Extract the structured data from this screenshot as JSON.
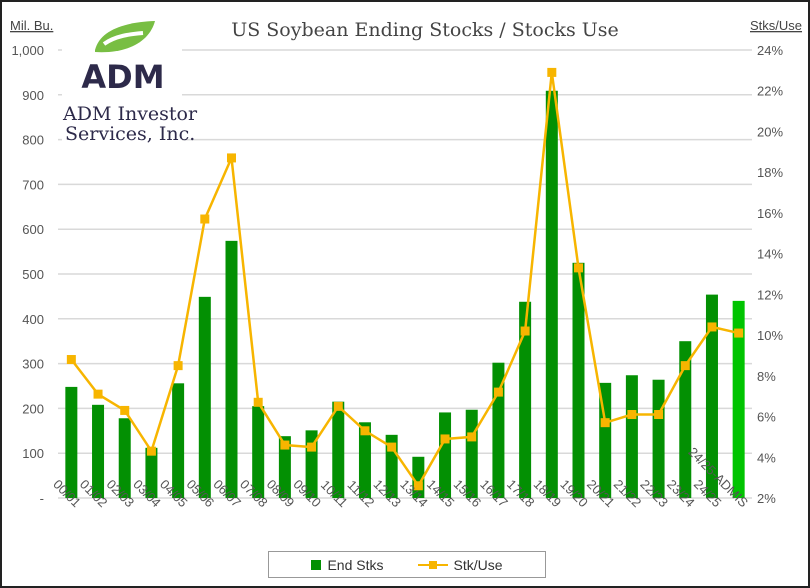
{
  "logo": {
    "brand": "ADM",
    "line1": "ADM Investor",
    "line2": "Services, Inc."
  },
  "colors": {
    "bar": "#039003",
    "bar_highlight": "#00c400",
    "line": "#f7b500",
    "grid": "#d9d9d9",
    "logo_green": "#78be43",
    "logo_navy": "#2d2a4a"
  },
  "chart_data": {
    "type": "bar+line",
    "title": "US Soybean Ending Stocks / Stocks Use",
    "ylabel_left": "Mil. Bu.",
    "ylabel_right": "Stks/Use",
    "ylim_left": [
      0,
      1000
    ],
    "ylim_right": [
      2,
      24
    ],
    "left_ticks": [
      "-",
      "100",
      "200",
      "300",
      "400",
      "500",
      "600",
      "700",
      "800",
      "900",
      "1,000"
    ],
    "right_ticks": [
      "2%",
      "4%",
      "6%",
      "8%",
      "10%",
      "12%",
      "14%",
      "16%",
      "18%",
      "20%",
      "22%",
      "24%"
    ],
    "grid": true,
    "legend_position": "bottom",
    "categories": [
      "00/01",
      "01/02",
      "02/03",
      "03/04",
      "04/05",
      "05/06",
      "06/07",
      "07/08",
      "08/09",
      "09/10",
      "10/11",
      "11/12",
      "12/13",
      "13/14",
      "14/15",
      "15/16",
      "16/17",
      "17/18",
      "18/19",
      "19/20",
      "20/21",
      "21/22",
      "22/23",
      "23/24",
      "24/25",
      "24/25-ADMIS"
    ],
    "series": [
      {
        "name": "End Stks",
        "type": "bar",
        "axis": "left",
        "values": [
          248,
          208,
          178,
          112,
          256,
          449,
          574,
          205,
          138,
          151,
          215,
          169,
          141,
          92,
          191,
          197,
          302,
          438,
          909,
          525,
          257,
          274,
          264,
          350,
          454,
          440
        ]
      },
      {
        "name": "Stk/Use",
        "type": "line",
        "axis": "right",
        "unit": "%",
        "values": [
          8.8,
          7.1,
          6.3,
          4.3,
          8.5,
          15.7,
          18.7,
          6.7,
          4.6,
          4.5,
          6.5,
          5.3,
          4.5,
          2.6,
          4.9,
          5.0,
          7.2,
          10.2,
          22.9,
          13.3,
          5.7,
          6.1,
          6.1,
          8.5,
          10.4,
          10.1
        ]
      }
    ]
  }
}
